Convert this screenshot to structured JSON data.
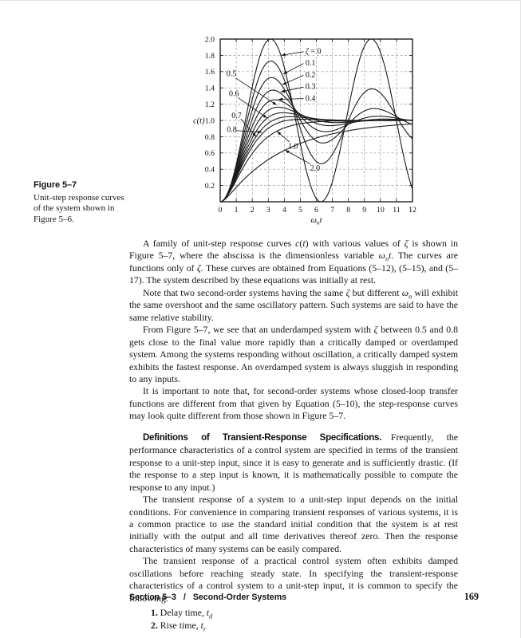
{
  "figure_caption": {
    "label": "Figure 5–7",
    "text": "Unit-step response curves of the system shown in Figure 5–6."
  },
  "body": {
    "paragraphs": [
      {
        "segments": [
          {
            "t": "A family of unit-step response curves "
          },
          {
            "t": "c",
            "i": 1
          },
          {
            "t": "("
          },
          {
            "t": "t",
            "i": 1
          },
          {
            "t": ")"
          },
          {
            "t": " with various values of "
          },
          {
            "t": "ζ",
            "i": 1
          },
          {
            "t": " is shown in Figure 5–7, where the abscissa is the dimensionless variable "
          },
          {
            "t": "ω",
            "i": 1
          },
          {
            "t": "n",
            "i": 1,
            "sub": 1
          },
          {
            "t": "t",
            "i": 1
          },
          {
            "t": ". The curves are functions only of "
          },
          {
            "t": "ζ",
            "i": 1
          },
          {
            "t": ". These curves are obtained from Equations (5–12), (5–15), and (5–17). The system described by these equations was initially at rest."
          }
        ]
      },
      {
        "segments": [
          {
            "t": "Note that two second-order systems having the same "
          },
          {
            "t": "ζ",
            "i": 1
          },
          {
            "t": " but different "
          },
          {
            "t": "ω",
            "i": 1
          },
          {
            "t": "n",
            "i": 1,
            "sub": 1
          },
          {
            "t": " will exhibit the same overshoot and the same oscillatory pattern. Such systems are said to have the same relative stability."
          }
        ]
      },
      {
        "segments": [
          {
            "t": "From Figure 5–7, we see that an underdamped system with "
          },
          {
            "t": "ζ",
            "i": 1
          },
          {
            "t": " between 0.5 and 0.8 gets close to the final value more rapidly than a critically damped or overdamped system. Among the systems responding without oscillation, a critically damped system exhibits the fastest response. An overdamped system is always sluggish in responding to any inputs."
          }
        ]
      },
      {
        "segments": [
          {
            "t": "It is important to note that, for second-order systems whose closed-loop transfer functions are different from that given by Equation (5–10), the step-response curves may look quite different from those shown in Figure 5–7."
          }
        ]
      },
      {
        "segments": [
          {
            "t": "Definitions of Transient-Response Specifications.",
            "head": 1
          },
          {
            "t": "  Frequently, the performance characteristics of a control system are specified in terms of the transient response to a unit-step input, since it is easy to generate and is sufficiently drastic. (If the response to a step input is known, it is mathematically possible to compute the response to any input.)"
          }
        ]
      },
      {
        "segments": [
          {
            "t": "The transient response of a system to a unit-step input depends on the initial conditions. For convenience in comparing transient responses of various systems, it is a common practice to use the standard initial condition that the system is at rest initially with the output and all time derivatives thereof zero. Then the response characteristics of many systems can be easily compared."
          }
        ]
      },
      {
        "segments": [
          {
            "t": "The transient response of a practical control system often exhibits damped oscillations before reaching steady state. In specifying the transient-response characteristics of a control system to a unit-step input, it is common to specify the following:"
          }
        ]
      }
    ],
    "list": [
      {
        "segments": [
          {
            "t": "1.",
            "b": 1
          },
          {
            "t": " Delay time, "
          },
          {
            "t": "t",
            "i": 1
          },
          {
            "t": "d",
            "i": 1,
            "sub": 1
          }
        ]
      },
      {
        "segments": [
          {
            "t": "2.",
            "b": 1
          },
          {
            "t": " Rise time, "
          },
          {
            "t": "t",
            "i": 1
          },
          {
            "t": "r",
            "i": 1,
            "sub": 1
          }
        ]
      }
    ]
  },
  "footer": {
    "section": "Section 5–3",
    "separator": "/",
    "chapter": "Second-Order Systems",
    "page_number": "169"
  },
  "chart_data": {
    "type": "line",
    "title": "",
    "ylabel": "c(t)",
    "xlabel_segments": [
      {
        "t": "ω",
        "i": 1
      },
      {
        "t": "n",
        "i": 1,
        "sub": 1
      },
      {
        "t": "t",
        "i": 1
      }
    ],
    "xlim": [
      0,
      12
    ],
    "ylim": [
      0,
      2.0
    ],
    "xticks": [
      0,
      1,
      2,
      3,
      4,
      5,
      6,
      7,
      8,
      9,
      10,
      11,
      12
    ],
    "yticks": [
      0.2,
      0.4,
      0.6,
      0.8,
      1.0,
      1.2,
      1.4,
      1.6,
      1.8,
      2.0
    ],
    "grid": "dashed",
    "legend_position": "inline-annotations",
    "model": "Unit-step response of G(s)=ωn²/(s²+2ζωn s+ωn²), τ=ωn t: ζ=0 → c=1−cosτ; 0<ζ<1 → c=1−e^(−ζτ)[cos(ωdτ)+ζ/√(1−ζ²)·sin(ωdτ)], ωd=√(1−ζ²); ζ=1 → c=1−e^(−τ)(1+τ); ζ>1 → c=1−(s₂e^(−s₁τ)−s₁e^(−s₂τ))/(s₂−s₁), s₁‚₂=ζ±√(ζ²−1)",
    "series": [
      {
        "zeta": 0,
        "label": "ζ = 0"
      },
      {
        "zeta": 0.1,
        "label": "0.1"
      },
      {
        "zeta": 0.2,
        "label": "0.2"
      },
      {
        "zeta": 0.3,
        "label": "0.3"
      },
      {
        "zeta": 0.4,
        "label": "0.4"
      },
      {
        "zeta": 0.5,
        "label": "0.5"
      },
      {
        "zeta": 0.6,
        "label": "0.6"
      },
      {
        "zeta": 0.7,
        "label": "0.7"
      },
      {
        "zeta": 0.8,
        "label": "0.8"
      },
      {
        "zeta": 1.0,
        "label": "1.0"
      },
      {
        "zeta": 2.0,
        "label": "2.0"
      }
    ],
    "annotations": [
      {
        "segments": [
          {
            "t": "ζ",
            "i": 1
          },
          {
            "t": " = 0"
          }
        ],
        "x": 5.32,
        "y": 1.855,
        "anchor": "start",
        "line": [
          5.2,
          1.845,
          3.82,
          1.8
        ]
      },
      {
        "segments": [
          {
            "t": "0.1"
          }
        ],
        "x": 5.32,
        "y": 1.71,
        "anchor": "start",
        "line": [
          5.2,
          1.7,
          3.93,
          1.57
        ]
      },
      {
        "segments": [
          {
            "t": "0.2"
          }
        ],
        "x": 5.32,
        "y": 1.565,
        "anchor": "start",
        "line": [
          5.2,
          1.555,
          3.88,
          1.44
        ]
      },
      {
        "segments": [
          {
            "t": "0.3"
          }
        ],
        "x": 5.32,
        "y": 1.42,
        "anchor": "start",
        "line": [
          5.2,
          1.41,
          3.78,
          1.35
        ]
      },
      {
        "segments": [
          {
            "t": "0.4"
          }
        ],
        "x": 5.32,
        "y": 1.275,
        "anchor": "start",
        "line": [
          5.2,
          1.268,
          3.64,
          1.26
        ]
      },
      {
        "segments": [
          {
            "t": "0.5"
          }
        ],
        "x": 0.7,
        "y": 1.58,
        "anchor": "middle",
        "line": [
          0.97,
          1.52,
          3.52,
          1.19
        ]
      },
      {
        "segments": [
          {
            "t": "0.6"
          }
        ],
        "x": 0.86,
        "y": 1.335,
        "anchor": "middle",
        "line": [
          1.12,
          1.28,
          2.92,
          1.03
        ]
      },
      {
        "segments": [
          {
            "t": "0.7"
          }
        ],
        "x": 1.02,
        "y": 1.065,
        "anchor": "middle",
        "line": [
          1.28,
          1.02,
          2.24,
          0.8
        ]
      },
      {
        "segments": [
          {
            "t": "0.8"
          }
        ],
        "x": 0.72,
        "y": 0.89,
        "anchor": "middle",
        "line": [
          0.98,
          0.875,
          2.6,
          0.855
        ]
      },
      {
        "segments": [
          {
            "t": "1.0"
          }
        ],
        "x": 4.55,
        "y": 0.685,
        "anchor": "middle",
        "line": [
          4.32,
          0.735,
          3.55,
          0.865
        ]
      },
      {
        "segments": [
          {
            "t": "2.0"
          }
        ],
        "x": 5.92,
        "y": 0.415,
        "anchor": "middle",
        "line": [
          5.62,
          0.465,
          4.06,
          0.635
        ]
      }
    ],
    "colors": {
      "curve": "#1a1a1a",
      "grid": "#999999",
      "frame": "#111111",
      "text": "#111111"
    }
  }
}
